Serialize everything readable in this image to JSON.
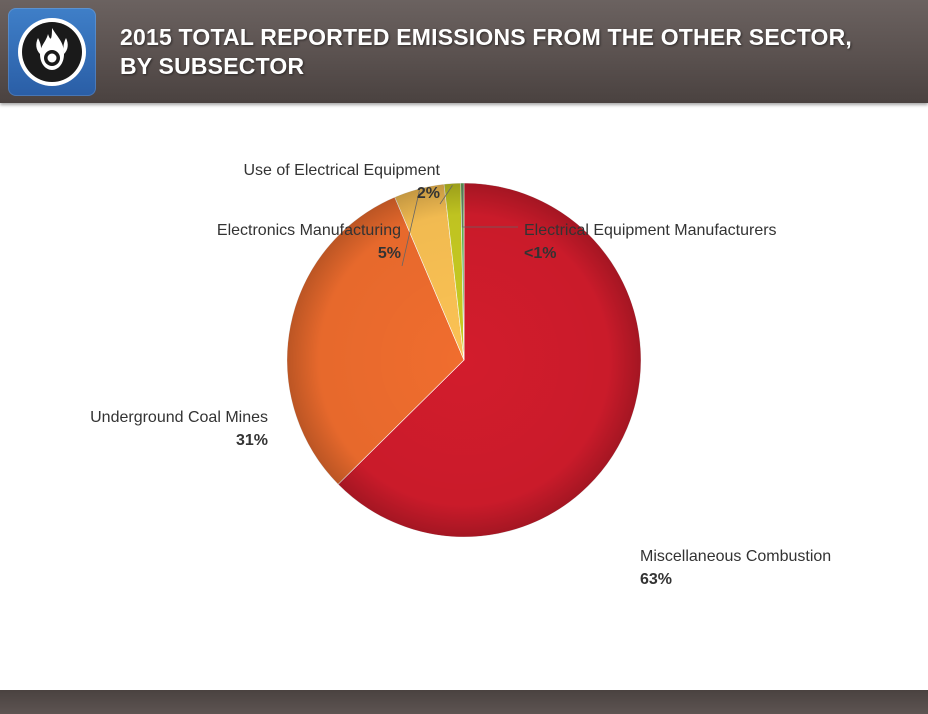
{
  "header": {
    "title_line1": "2015 TOTAL REPORTED EMISSIONS FROM THE OTHER SECTOR,",
    "title_line2": "BY SUBSECTOR",
    "icon": "flame-hazard-icon"
  },
  "colors": {
    "header_bg": "#5a514f",
    "icon_bg": "#2f66ae"
  },
  "chart_data": {
    "type": "pie",
    "slices": [
      {
        "name": "Miscellaneous Combustion",
        "label": "63%",
        "value": 62.6,
        "color": "#d21c2c"
      },
      {
        "name": "Underground Coal Mines",
        "label": "31%",
        "value": 31.0,
        "color": "#f06d2e"
      },
      {
        "name": "Electronics Manufacturing",
        "label": "5%",
        "value": 4.6,
        "color": "#fbc254"
      },
      {
        "name": "Use of Electrical Equipment",
        "label": "2%",
        "value": 1.5,
        "color": "#c7cb22"
      },
      {
        "name": "Electrical Equipment Manufacturers",
        "label": "<1%",
        "value": 0.3,
        "color": "#62b35a"
      }
    ]
  }
}
